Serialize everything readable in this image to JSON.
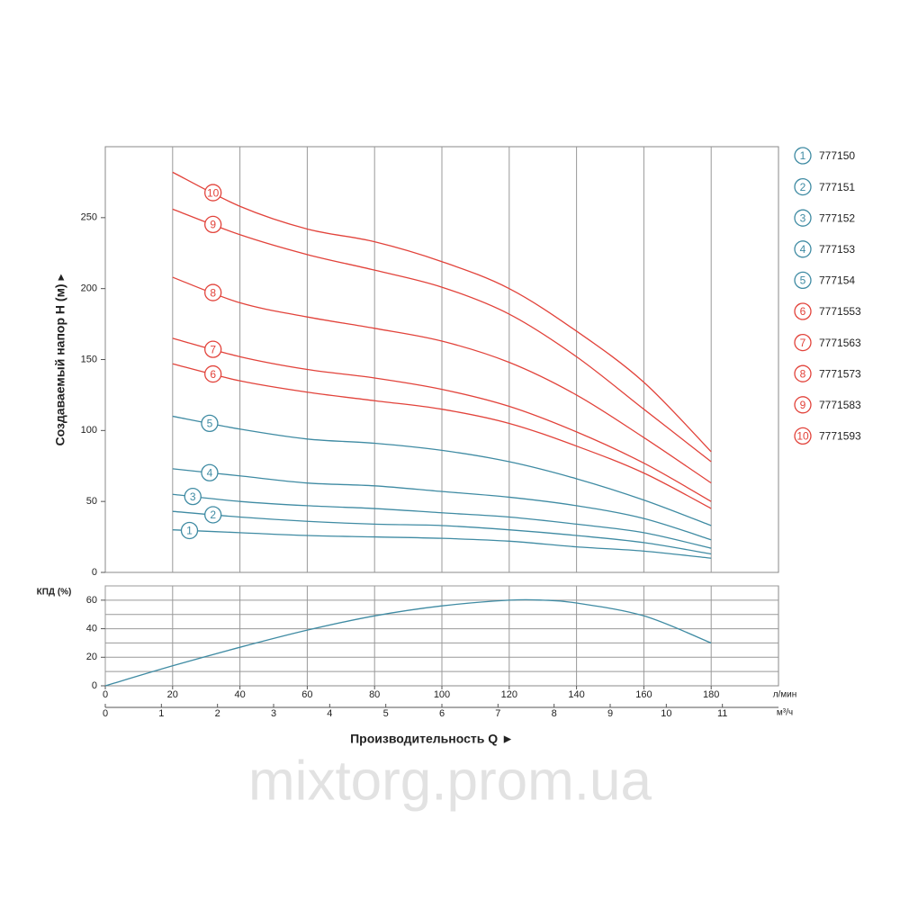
{
  "chart_data": [
    {
      "type": "line",
      "ylabel": "Создаваемый напор H (м) ▸",
      "xlim": [
        0,
        200
      ],
      "ylim": [
        0,
        300
      ],
      "yticks": [
        0,
        50,
        100,
        150,
        200,
        250
      ],
      "xgrid": [
        20,
        40,
        60,
        80,
        100,
        120,
        140,
        160,
        180
      ],
      "x": [
        20,
        40,
        60,
        80,
        100,
        120,
        140,
        160,
        180
      ],
      "series": [
        {
          "label": "1",
          "name": "777150",
          "color": "#3f8ba3",
          "values": [
            30,
            28,
            26,
            25,
            24,
            22,
            18,
            15,
            10
          ]
        },
        {
          "label": "2",
          "name": "777151",
          "color": "#3f8ba3",
          "values": [
            43,
            39,
            36,
            34,
            33,
            30,
            26,
            21,
            13
          ]
        },
        {
          "label": "3",
          "name": "777152",
          "color": "#3f8ba3",
          "values": [
            55,
            50,
            47,
            45,
            42,
            39,
            34,
            28,
            17
          ]
        },
        {
          "label": "4",
          "name": "777153",
          "color": "#3f8ba3",
          "values": [
            73,
            68,
            63,
            61,
            57,
            53,
            47,
            38,
            23
          ]
        },
        {
          "label": "5",
          "name": "777154",
          "color": "#3f8ba3",
          "values": [
            110,
            101,
            94,
            91,
            86,
            78,
            66,
            51,
            33
          ]
        },
        {
          "label": "6",
          "name": "7771553",
          "color": "#e2433b",
          "values": [
            147,
            135,
            127,
            121,
            115,
            105,
            89,
            70,
            45
          ]
        },
        {
          "label": "7",
          "name": "7771563",
          "color": "#e2433b",
          "values": [
            165,
            152,
            143,
            137,
            129,
            117,
            99,
            77,
            50
          ]
        },
        {
          "label": "8",
          "name": "7771573",
          "color": "#e2433b",
          "values": [
            208,
            190,
            180,
            172,
            163,
            148,
            125,
            95,
            63
          ]
        },
        {
          "label": "9",
          "name": "7771583",
          "color": "#e2433b",
          "values": [
            256,
            238,
            224,
            213,
            201,
            182,
            152,
            115,
            78
          ]
        },
        {
          "label": "10",
          "name": "7771593",
          "color": "#e2433b",
          "values": [
            282,
            258,
            242,
            233,
            219,
            200,
            170,
            134,
            85
          ]
        }
      ]
    },
    {
      "type": "line",
      "ylabel": "КПД (%)",
      "xlabel": "Производительность Q ►",
      "xunit": "л/мин",
      "x2unit": "м³/ч",
      "xlim": [
        0,
        200
      ],
      "ylim": [
        0,
        70
      ],
      "yticks": [
        0,
        20,
        40,
        60
      ],
      "ygrid": [
        10,
        20,
        30,
        40,
        50,
        60,
        70
      ],
      "xticks": [
        0,
        20,
        40,
        60,
        80,
        100,
        120,
        140,
        160,
        180
      ],
      "x2lim": [
        0,
        12
      ],
      "x2ticks": [
        0,
        1,
        2,
        3,
        4,
        5,
        6,
        7,
        8,
        9,
        10,
        11
      ],
      "x": [
        0,
        20,
        40,
        60,
        80,
        100,
        120,
        130,
        140,
        160,
        180
      ],
      "series": [
        {
          "color": "#3f8ba3",
          "values": [
            0,
            14,
            27,
            39,
            49,
            56,
            60,
            60,
            58,
            49,
            30
          ]
        }
      ]
    }
  ],
  "watermark": "mixtorg.prom.ua"
}
